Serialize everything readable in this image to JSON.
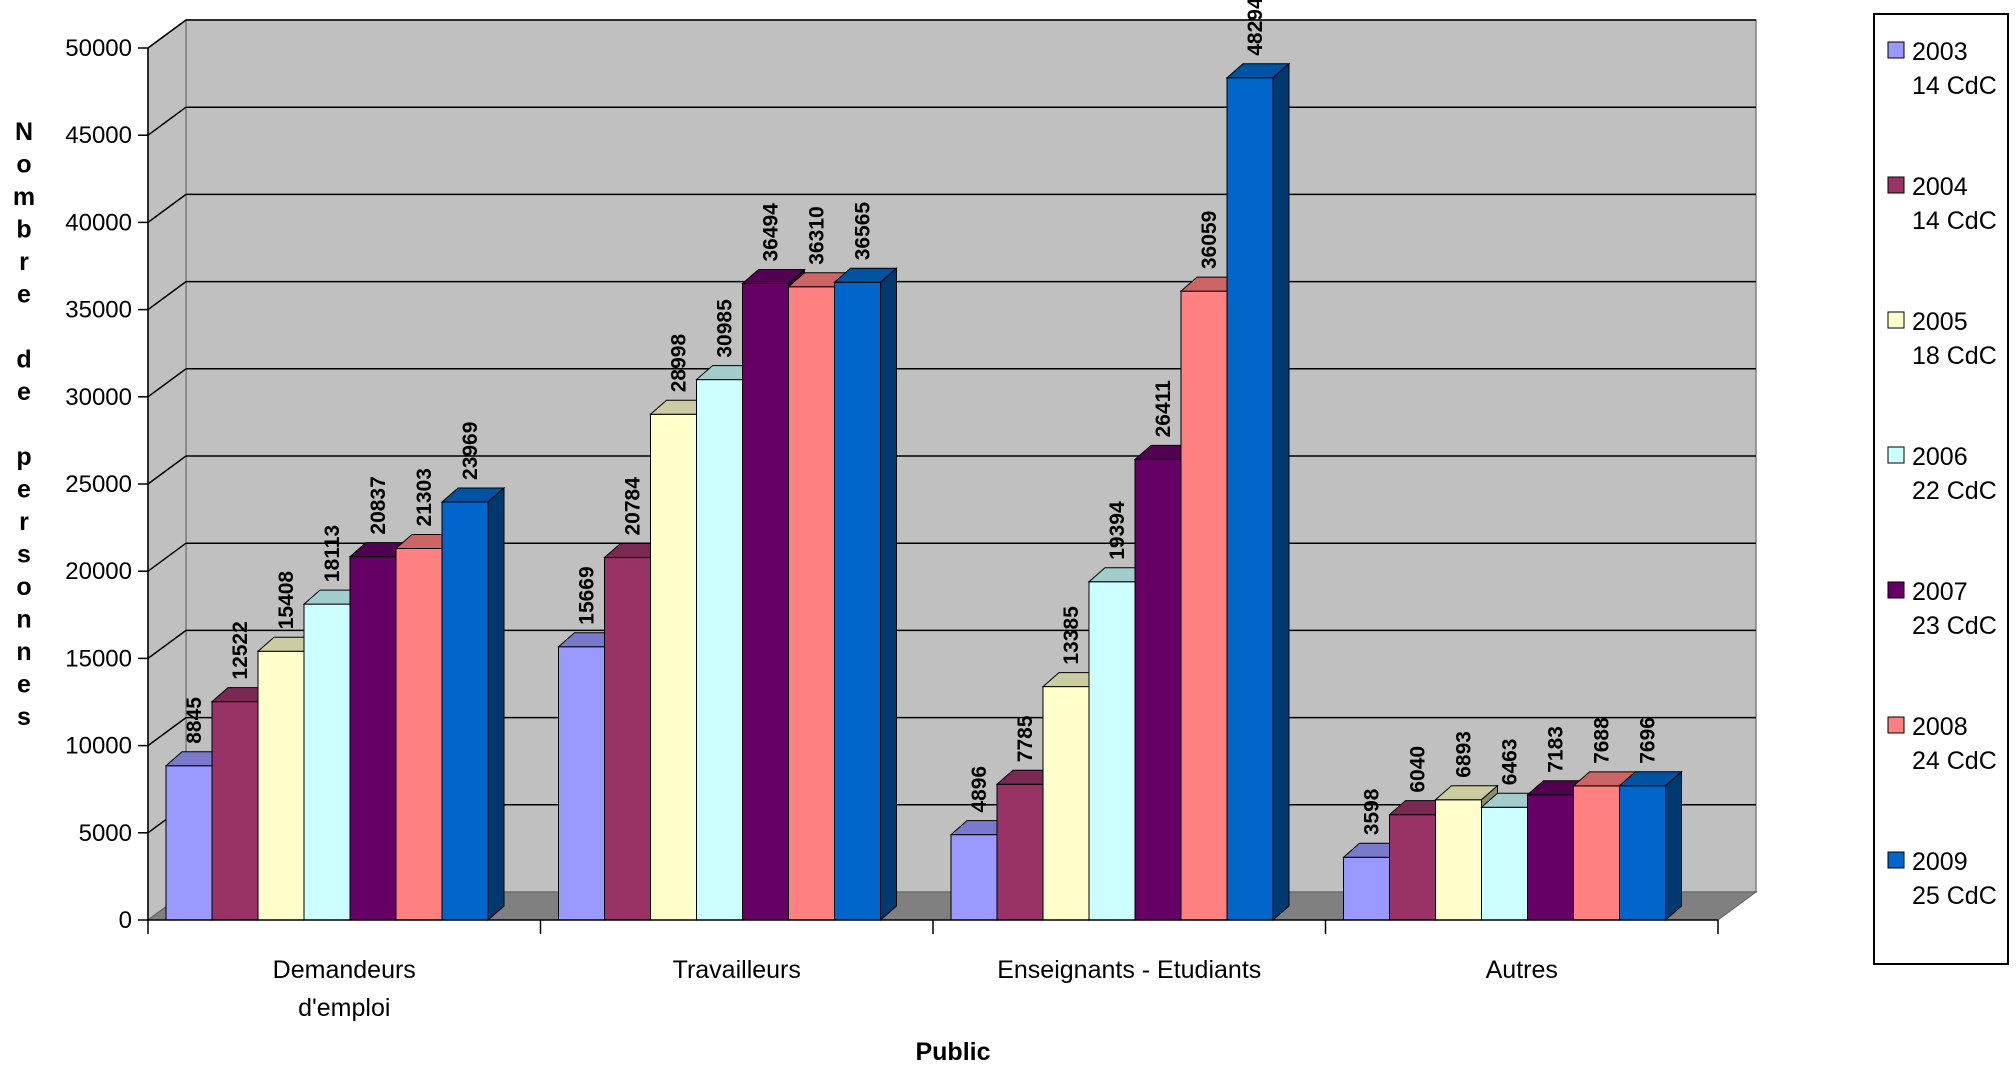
{
  "chart_data": {
    "type": "bar",
    "three_d": true,
    "xlabel": "Public",
    "ylabel": "Nombre de personnes",
    "ylim": [
      0,
      50000
    ],
    "yticks": [
      0,
      5000,
      10000,
      15000,
      20000,
      25000,
      30000,
      35000,
      40000,
      45000,
      50000
    ],
    "grid": true,
    "legend_position": "right",
    "categories": [
      {
        "line1": "Demandeurs",
        "line2": "d'emploi"
      },
      {
        "line1": "Travailleurs",
        "line2": ""
      },
      {
        "line1": "Enseignants - Etudiants",
        "line2": ""
      },
      {
        "line1": "Autres",
        "line2": ""
      }
    ],
    "series": [
      {
        "name": "2003",
        "name2": "14 CdC",
        "color": "#9999FF",
        "values": [
          8845,
          15669,
          4896,
          3598
        ]
      },
      {
        "name": "2004",
        "name2": "14 CdC",
        "color": "#993366",
        "values": [
          12522,
          20784,
          7785,
          6040
        ]
      },
      {
        "name": "2005",
        "name2": "18 CdC",
        "color": "#FFFFCC",
        "values": [
          15408,
          28998,
          13385,
          6893
        ]
      },
      {
        "name": "2006",
        "name2": "22 CdC",
        "color": "#CCFFFF",
        "values": [
          18113,
          30985,
          19394,
          6463
        ]
      },
      {
        "name": "2007",
        "name2": "23 CdC",
        "color": "#660066",
        "values": [
          20837,
          36494,
          26411,
          7183
        ]
      },
      {
        "name": "2008",
        "name2": "24 CdC",
        "color": "#FF8080",
        "values": [
          21303,
          36310,
          36059,
          7688
        ]
      },
      {
        "name": "2009",
        "name2": "25 CdC",
        "color": "#0066CC",
        "values": [
          23969,
          36565,
          48294,
          7696
        ]
      }
    ]
  }
}
